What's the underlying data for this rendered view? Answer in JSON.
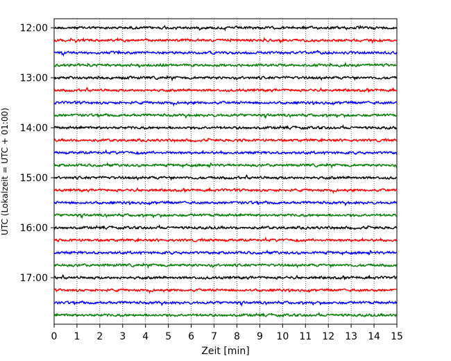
{
  "chart_data": {
    "type": "line",
    "title": "",
    "xlabel": "Zeit  [min]",
    "ylabel": "UTC (Lokalzeit = UTC + 01:00)",
    "xlim": [
      0,
      15
    ],
    "x_ticks": [
      "0",
      "1",
      "2",
      "3",
      "4",
      "5",
      "6",
      "7",
      "8",
      "9",
      "10",
      "11",
      "12",
      "13",
      "14",
      "15"
    ],
    "y_ticks": [
      "12:00",
      "13:00",
      "14:00",
      "15:00",
      "16:00",
      "17:00"
    ],
    "trace_start": "12:00",
    "trace_interval_min": 15,
    "trace_count": 24,
    "trace_colors": [
      "#000000",
      "#ff0000",
      "#0000ff",
      "#007f00"
    ],
    "vertical_grid": true,
    "grid_style": "dotted",
    "legend": "none"
  }
}
